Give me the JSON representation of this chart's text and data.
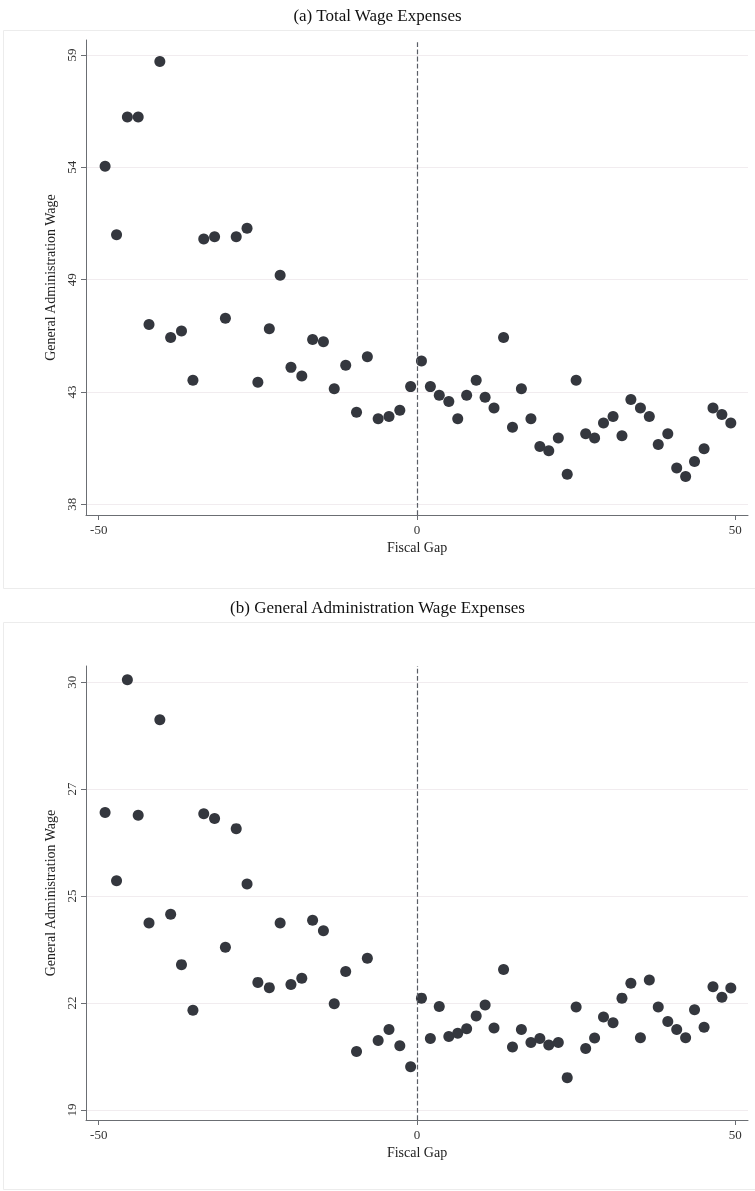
{
  "chart_data": [
    {
      "type": "scatter",
      "title": "(a) Total Wage Expenses",
      "xlabel": "Fiscal Gap",
      "ylabel": "General Administration Wage",
      "x": [
        -49.0,
        -47.2,
        -45.5,
        -43.8,
        -42.1,
        -40.4,
        -38.7,
        -37.0,
        -35.2,
        -33.5,
        -31.8,
        -30.1,
        -28.4,
        -26.7,
        -25.0,
        -23.2,
        -21.5,
        -19.8,
        -18.1,
        -16.4,
        -14.7,
        -13.0,
        -11.2,
        -9.5,
        -7.8,
        -6.1,
        -4.4,
        -2.7,
        -1.0,
        0.7,
        2.1,
        3.5,
        5.0,
        6.4,
        7.8,
        9.3,
        10.7,
        12.1,
        13.6,
        15.0,
        16.4,
        17.9,
        19.3,
        20.7,
        22.2,
        23.6,
        25.0,
        26.5,
        27.9,
        29.3,
        30.8,
        32.2,
        33.6,
        35.1,
        36.5,
        37.9,
        39.4,
        40.8,
        42.2,
        43.6,
        45.1,
        46.5,
        47.9,
        49.3
      ],
      "series": [
        {
          "color": "#34373e",
          "values": [
            54.0,
            50.8,
            56.3,
            56.3,
            46.6,
            58.9,
            46.0,
            46.3,
            44.0,
            50.6,
            50.7,
            46.9,
            50.7,
            51.1,
            43.9,
            46.4,
            48.9,
            44.6,
            44.2,
            45.9,
            45.8,
            43.6,
            44.7,
            42.5,
            45.1,
            42.2,
            42.3,
            42.6,
            43.7,
            44.9,
            43.7,
            43.3,
            43.0,
            42.2,
            43.3,
            44.0,
            43.2,
            42.7,
            46.0,
            41.8,
            43.6,
            42.2,
            40.9,
            40.7,
            41.3,
            39.6,
            44.0,
            41.5,
            41.3,
            42.0,
            42.3,
            41.4,
            43.1,
            42.7,
            42.3,
            41.0,
            41.5,
            39.9,
            39.5,
            40.2,
            40.8,
            42.7,
            42.4,
            42.0
          ]
        }
      ],
      "xlim": [
        -52,
        52
      ],
      "xticks": [
        -50,
        0,
        50
      ],
      "ylim": [
        37.7,
        59.9
      ],
      "yticks": [
        {
          "value": 38.2,
          "label": "38"
        },
        {
          "value": 43.45,
          "label": "43"
        },
        {
          "value": 48.7,
          "label": "49"
        },
        {
          "value": 53.95,
          "label": "54"
        },
        {
          "value": 59.2,
          "label": "59"
        }
      ],
      "grid": "y",
      "marker": "circle",
      "ref_lines": [
        {
          "axis": "x",
          "value": 0,
          "color": "#5a5e66",
          "line_style": "dashed"
        }
      ]
    },
    {
      "type": "scatter",
      "title": "(b) General Administration Wage Expenses",
      "xlabel": "Fiscal Gap",
      "ylabel": "General Administration Wage",
      "x": [
        -49.0,
        -47.2,
        -45.5,
        -43.8,
        -42.1,
        -40.4,
        -38.7,
        -37.0,
        -35.2,
        -33.5,
        -31.8,
        -30.1,
        -28.4,
        -26.7,
        -25.0,
        -23.2,
        -21.5,
        -19.8,
        -18.1,
        -16.4,
        -14.7,
        -13.0,
        -11.2,
        -9.5,
        -7.8,
        -6.1,
        -4.4,
        -2.7,
        -1.0,
        0.7,
        2.1,
        3.5,
        5.0,
        6.4,
        7.8,
        9.3,
        10.7,
        12.1,
        13.6,
        15.0,
        16.4,
        17.9,
        19.3,
        20.7,
        22.2,
        23.6,
        25.0,
        26.5,
        27.9,
        29.3,
        30.8,
        32.2,
        33.6,
        35.1,
        36.5,
        37.9,
        39.4,
        40.8,
        42.2,
        43.6,
        45.1,
        46.5,
        47.9,
        49.3
      ],
      "series": [
        {
          "color": "#34373e",
          "values": [
            26.77,
            25.08,
            30.06,
            26.7,
            24.03,
            29.07,
            24.25,
            23.0,
            21.87,
            26.74,
            26.62,
            23.43,
            26.37,
            25.0,
            22.56,
            22.43,
            24.03,
            22.51,
            22.66,
            24.1,
            23.84,
            22.03,
            22.83,
            20.85,
            23.16,
            21.12,
            21.39,
            20.99,
            20.47,
            22.17,
            21.17,
            21.96,
            21.22,
            21.3,
            21.41,
            21.73,
            22.0,
            21.43,
            22.88,
            20.96,
            21.39,
            21.07,
            21.17,
            21.01,
            21.07,
            20.2,
            21.95,
            20.92,
            21.18,
            21.7,
            21.56,
            22.17,
            22.54,
            21.19,
            22.62,
            21.95,
            21.59,
            21.39,
            21.19,
            21.88,
            21.45,
            22.45,
            22.19,
            22.42
          ]
        }
      ],
      "xlim": [
        -52,
        52
      ],
      "xticks": [
        -50,
        0,
        50
      ],
      "ylim": [
        19.15,
        30.4
      ],
      "yticks": [
        {
          "value": 19.4,
          "label": "19"
        },
        {
          "value": 22.05,
          "label": "22"
        },
        {
          "value": 24.7,
          "label": "25"
        },
        {
          "value": 27.35,
          "label": "27"
        },
        {
          "value": 30.0,
          "label": "30"
        }
      ],
      "grid": "y",
      "marker": "circle",
      "ref_lines": [
        {
          "axis": "x",
          "value": 0,
          "color": "#5a5e66",
          "line_style": "dashed"
        }
      ]
    }
  ]
}
